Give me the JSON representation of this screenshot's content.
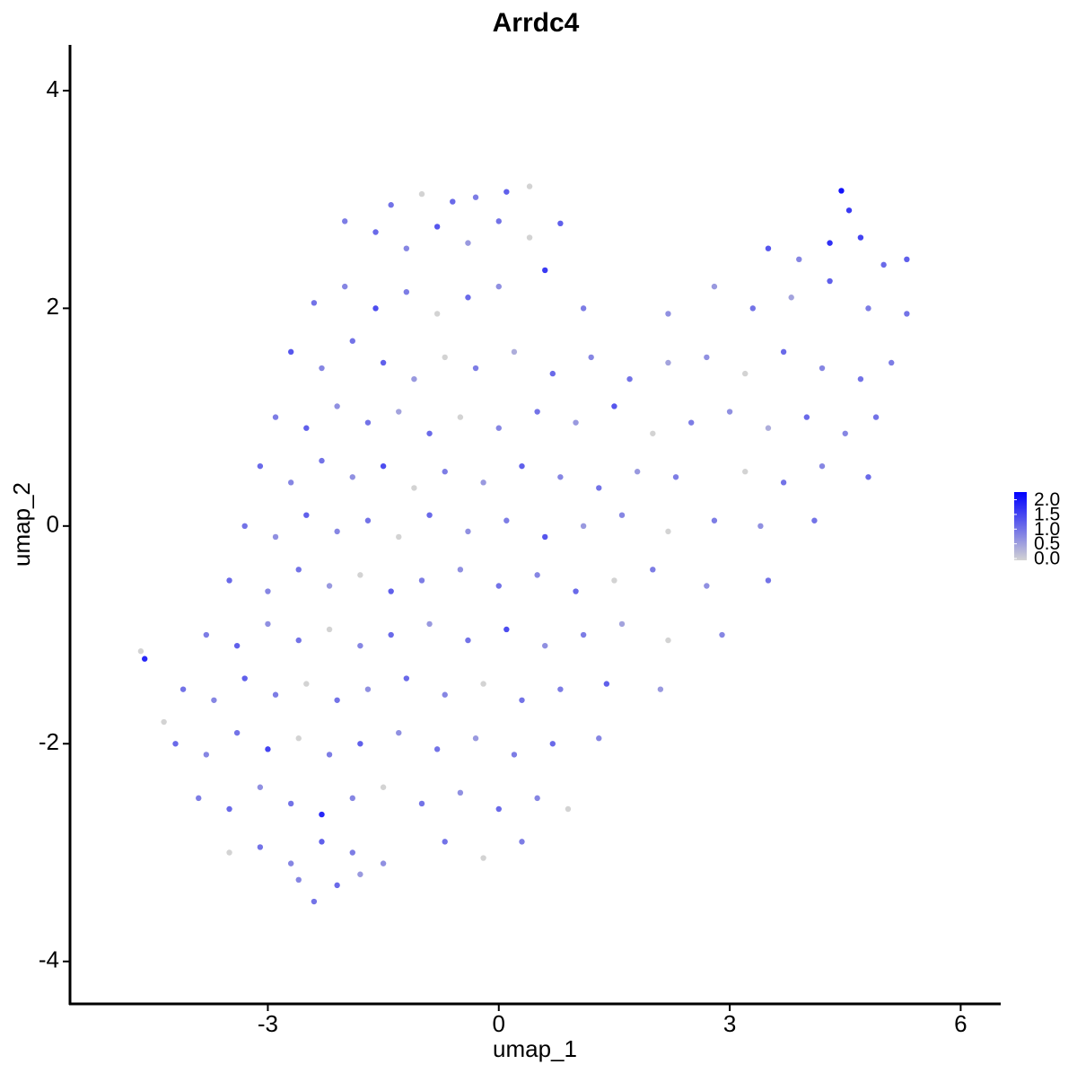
{
  "chart_data": {
    "type": "scatter",
    "title": "Arrdc4",
    "x_label": "umap_1",
    "y_label": "umap_2",
    "xlim": [
      -5.57,
      6.52
    ],
    "ylim": [
      -4.39,
      4.42
    ],
    "xticks": [
      -3,
      0,
      3,
      6
    ],
    "yticks": [
      -4,
      -2,
      0,
      2,
      4
    ],
    "colorscale": {
      "low": "#d3d3d3",
      "high": "#0000ff",
      "lim": [
        0,
        2.2
      ],
      "ticks": [
        {
          "value": 0,
          "label": "0.0"
        },
        0.5,
        {
          "value": 1,
          "label": "1.0"
        },
        1.5,
        {
          "value": 2,
          "label": "2.0"
        }
      ]
    },
    "x": [
      -1.4,
      -1.0,
      -0.6,
      -0.3,
      0.1,
      0.4,
      4.45,
      4.55,
      -2.0,
      -1.6,
      -1.2,
      -0.8,
      -0.4,
      0.0,
      0.4,
      0.8,
      3.5,
      3.9,
      4.3,
      4.7,
      5.0,
      5.3,
      -2.4,
      -2.0,
      -1.6,
      -1.2,
      -0.8,
      -0.4,
      0.0,
      0.6,
      1.1,
      2.2,
      2.8,
      3.3,
      3.8,
      4.3,
      4.8,
      5.3,
      -2.7,
      -2.3,
      -1.9,
      -1.5,
      -1.1,
      -0.7,
      -0.3,
      0.2,
      0.7,
      1.2,
      1.7,
      2.2,
      2.7,
      3.2,
      3.7,
      4.2,
      4.7,
      5.1,
      -2.9,
      -2.5,
      -2.1,
      -1.7,
      -1.3,
      -0.9,
      -0.5,
      0.0,
      0.5,
      1.0,
      1.5,
      2.0,
      2.5,
      3.0,
      3.5,
      4.0,
      4.5,
      4.9,
      -3.1,
      -2.7,
      -2.3,
      -1.9,
      -1.5,
      -1.1,
      -0.7,
      -0.2,
      0.3,
      0.8,
      1.3,
      1.8,
      2.3,
      3.2,
      3.7,
      4.2,
      4.8,
      -3.3,
      -2.9,
      -2.5,
      -2.1,
      -1.7,
      -1.3,
      -0.9,
      -0.4,
      0.1,
      0.6,
      1.1,
      1.6,
      2.2,
      2.8,
      3.4,
      4.1,
      -3.5,
      -3.0,
      -2.6,
      -2.2,
      -1.8,
      -1.4,
      -1.0,
      -0.5,
      0.0,
      0.5,
      1.0,
      1.5,
      2.0,
      2.7,
      3.5,
      -3.8,
      -3.4,
      -3.0,
      -2.6,
      -2.2,
      -1.8,
      -1.4,
      -0.9,
      -0.4,
      0.1,
      0.6,
      1.1,
      1.6,
      2.2,
      2.9,
      -4.1,
      -3.7,
      -3.3,
      -2.9,
      -2.5,
      -2.1,
      -1.7,
      -1.2,
      -0.7,
      -0.2,
      0.3,
      0.8,
      1.4,
      2.1,
      -4.2,
      -3.8,
      -3.4,
      -3.0,
      -2.6,
      -2.2,
      -1.8,
      -1.3,
      -0.8,
      -0.3,
      0.2,
      0.7,
      1.3,
      -3.9,
      -3.5,
      -3.1,
      -2.7,
      -2.3,
      -1.9,
      -1.5,
      -1.0,
      -0.5,
      0.0,
      0.5,
      0.9,
      -3.5,
      -3.1,
      -2.7,
      -2.3,
      -1.9,
      -1.5,
      -0.7,
      -0.2,
      0.3,
      -2.4,
      -2.1,
      -2.6,
      -1.8,
      -4.6,
      -4.65,
      -4.35
    ],
    "y": [
      2.95,
      3.05,
      2.98,
      3.02,
      3.07,
      3.12,
      3.08,
      2.9,
      2.8,
      2.7,
      2.55,
      2.75,
      2.6,
      2.8,
      2.65,
      2.78,
      2.55,
      2.45,
      2.6,
      2.65,
      2.4,
      2.45,
      2.05,
      2.2,
      2.0,
      2.15,
      1.95,
      2.1,
      2.2,
      2.35,
      2.0,
      1.95,
      2.2,
      2.0,
      2.1,
      2.25,
      2.0,
      1.95,
      1.6,
      1.45,
      1.7,
      1.5,
      1.35,
      1.55,
      1.45,
      1.6,
      1.4,
      1.55,
      1.35,
      1.5,
      1.55,
      1.4,
      1.6,
      1.45,
      1.35,
      1.5,
      1.0,
      0.9,
      1.1,
      0.95,
      1.05,
      0.85,
      1.0,
      0.9,
      1.05,
      0.95,
      1.1,
      0.85,
      0.95,
      1.05,
      0.9,
      1.0,
      0.85,
      1.0,
      0.55,
      0.4,
      0.6,
      0.45,
      0.55,
      0.35,
      0.5,
      0.4,
      0.55,
      0.45,
      0.35,
      0.5,
      0.45,
      0.5,
      0.4,
      0.55,
      0.45,
      0.0,
      -0.1,
      0.1,
      -0.05,
      0.05,
      -0.1,
      0.1,
      -0.05,
      0.05,
      -0.1,
      0.0,
      0.1,
      -0.05,
      0.05,
      0.0,
      0.05,
      -0.5,
      -0.6,
      -0.4,
      -0.55,
      -0.45,
      -0.6,
      -0.5,
      -0.4,
      -0.55,
      -0.45,
      -0.6,
      -0.5,
      -0.4,
      -0.55,
      -0.5,
      -1.0,
      -1.1,
      -0.9,
      -1.05,
      -0.95,
      -1.1,
      -1.0,
      -0.9,
      -1.05,
      -0.95,
      -1.1,
      -1.0,
      -0.9,
      -1.05,
      -1.0,
      -1.5,
      -1.6,
      -1.4,
      -1.55,
      -1.45,
      -1.6,
      -1.5,
      -1.4,
      -1.55,
      -1.45,
      -1.6,
      -1.5,
      -1.45,
      -1.5,
      -2.0,
      -2.1,
      -1.9,
      -2.05,
      -1.95,
      -2.1,
      -2.0,
      -1.9,
      -2.05,
      -1.95,
      -2.1,
      -2.0,
      -1.95,
      -2.5,
      -2.6,
      -2.4,
      -2.55,
      -2.65,
      -2.5,
      -2.4,
      -2.55,
      -2.45,
      -2.6,
      -2.5,
      -2.6,
      -3.0,
      -2.95,
      -3.1,
      -2.9,
      -3.0,
      -3.1,
      -2.9,
      -3.05,
      -2.9,
      -3.45,
      -3.3,
      -3.25,
      -3.2,
      -1.22,
      -1.15,
      -1.8
    ],
    "expression": [
      1.0,
      0,
      1.1,
      0.9,
      1.2,
      0,
      2.0,
      1.6,
      0.9,
      1.1,
      0.8,
      1.3,
      0.6,
      1.0,
      0,
      1.2,
      1.3,
      0.8,
      1.7,
      1.5,
      1.1,
      1.2,
      1.0,
      0.8,
      1.4,
      0.9,
      0,
      1.1,
      0.7,
      1.6,
      0.9,
      0.7,
      0.6,
      1.0,
      0.5,
      1.2,
      0.9,
      1.0,
      1.3,
      0.8,
      1.0,
      1.2,
      0.6,
      0,
      0.9,
      0.4,
      1.1,
      0.8,
      1.0,
      0.5,
      0.7,
      0,
      1.1,
      0.8,
      1.0,
      0.9,
      0.9,
      1.2,
      0.7,
      1.0,
      0.5,
      1.1,
      0,
      0.8,
      1.0,
      0.6,
      1.3,
      0,
      0.9,
      0.7,
      0.4,
      1.1,
      0.8,
      1.0,
      1.1,
      0.8,
      1.0,
      0.7,
      1.4,
      0,
      0.9,
      0.6,
      1.2,
      0.8,
      1.0,
      0.6,
      0.9,
      0,
      1.0,
      0.8,
      1.1,
      1.0,
      0.7,
      1.2,
      0.8,
      1.0,
      0,
      1.1,
      0.7,
      0.9,
      1.3,
      0.6,
      0.8,
      0,
      0.9,
      0.7,
      1.0,
      1.1,
      0.8,
      1.0,
      0.6,
      0,
      1.2,
      0.9,
      0.7,
      1.0,
      0.8,
      1.1,
      0,
      0.9,
      0.7,
      1.0,
      0.9,
      1.2,
      0.7,
      1.0,
      0,
      0.8,
      1.1,
      0.6,
      1.0,
      1.4,
      0.7,
      0.9,
      0.5,
      0,
      0.8,
      1.0,
      0.8,
      1.2,
      0.9,
      0,
      1.0,
      0.7,
      1.1,
      0.8,
      0,
      1.0,
      0.9,
      1.2,
      0.6,
      1.1,
      0.8,
      1.0,
      1.5,
      0,
      0.9,
      1.2,
      0.7,
      1.0,
      0.6,
      0.9,
      1.1,
      0.8,
      0.9,
      1.1,
      0.7,
      1.0,
      1.8,
      0.8,
      0,
      1.0,
      0.7,
      1.1,
      0.8,
      0,
      0,
      1.0,
      0.8,
      1.2,
      0.9,
      0.7,
      1.0,
      0,
      0.9,
      1.0,
      1.1,
      0.8,
      0.6,
      1.8,
      0,
      0
    ]
  }
}
